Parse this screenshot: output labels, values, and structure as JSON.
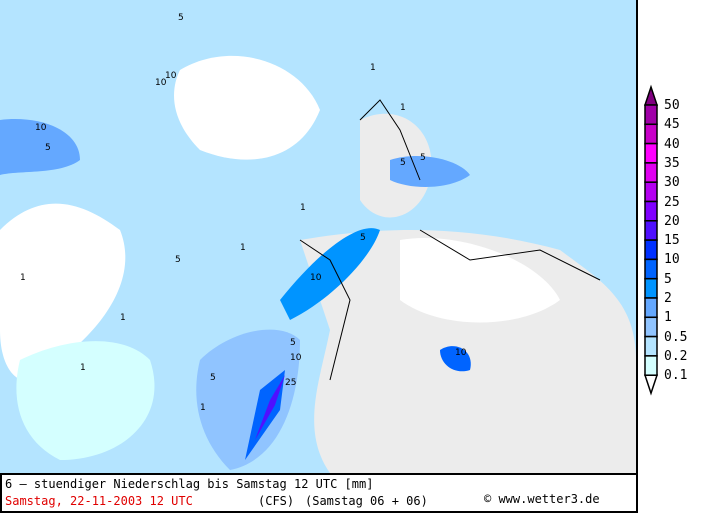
{
  "title": "6 – stuendiger Niederschlag bis Samstag 12 UTC [mm]",
  "valid_time": "Samstag, 22-11-2003  12 UTC",
  "model": "(CFS)",
  "run": "(Samstag 06 + 06)",
  "copyright": "© www.wetter3.de",
  "legend": {
    "labels": [
      "50",
      "45",
      "40",
      "35",
      "30",
      "25",
      "20",
      "15",
      "10",
      "5",
      "2",
      "1",
      "0.5",
      "0.2",
      "0.1"
    ],
    "colors": [
      "#800080",
      "#a000a8",
      "#c800c8",
      "#ff00ff",
      "#e000f0",
      "#b400f0",
      "#8000ff",
      "#5010ff",
      "#0030ff",
      "#0064ff",
      "#0094ff",
      "#64a8ff",
      "#90c4ff",
      "#b4e4ff",
      "#d4ffff",
      "#ffffff"
    ]
  },
  "contour_labels": [
    "1",
    "5",
    "10",
    "5",
    "10",
    "1",
    "5",
    "10",
    "1",
    "1",
    "5",
    "10",
    "25",
    "5",
    "1",
    "10",
    "5",
    "1",
    "1",
    "5",
    "1",
    "10",
    "5"
  ],
  "colors": {
    "land": "#ececec",
    "sea_no_precip": "#ffffff",
    "light_precip": "#d4ffff",
    "border": "#000000"
  }
}
